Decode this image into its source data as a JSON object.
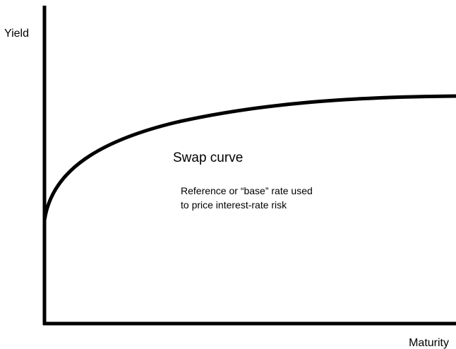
{
  "axes": {
    "y_label": "Yield",
    "x_label": "Maturity"
  },
  "curve": {
    "label": "Swap curve",
    "annotation": [
      "Reference or “base” rate used",
      "to price interest-rate risk"
    ]
  }
}
